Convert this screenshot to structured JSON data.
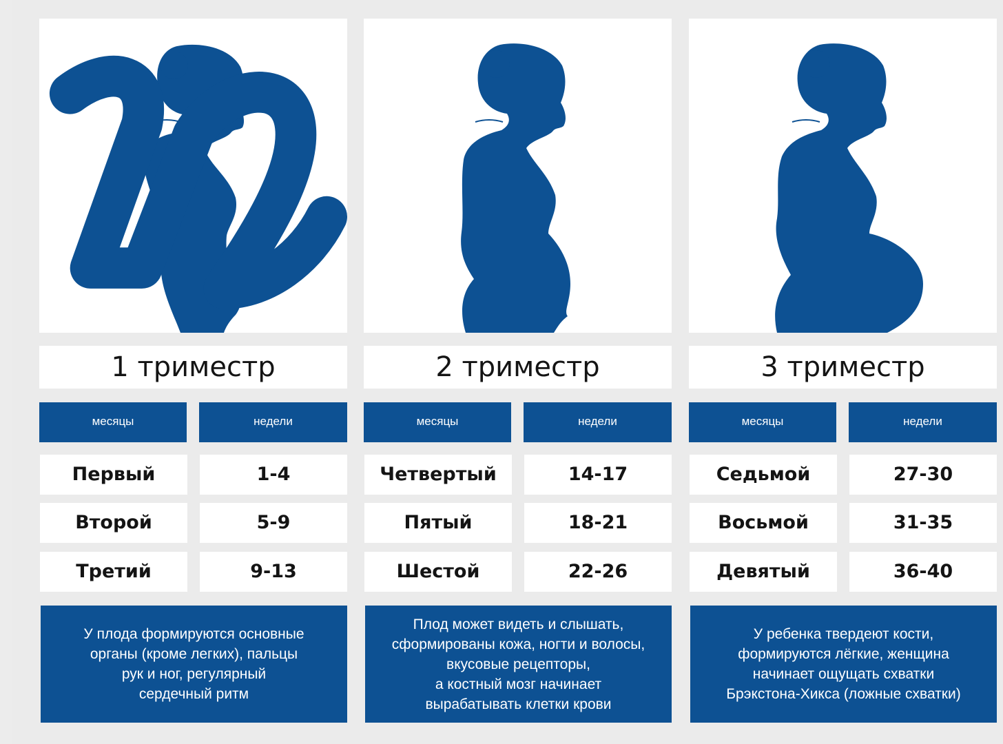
{
  "brand": {
    "logo_text": "n",
    "color": "#0d5193"
  },
  "colors": {
    "accent": "#0d5193",
    "cell_bg": "#ffffff",
    "page_bg": "#ebebeb"
  },
  "trimesters": [
    {
      "title": "1 триместр",
      "months_header": "месяцы",
      "weeks_header": "недели",
      "rows": [
        {
          "month": "Первый",
          "weeks": "1-4"
        },
        {
          "month": "Второй",
          "weeks": "5-9"
        },
        {
          "month": "Третий",
          "weeks": "9-13"
        }
      ],
      "description_lines": [
        "У плода формируются основные",
        "органы (кроме легких), пальцы",
        "рук и ног, регулярный",
        "сердечный ритм"
      ]
    },
    {
      "title": "2 триместр",
      "months_header": "месяцы",
      "weeks_header": "недели",
      "rows": [
        {
          "month": "Четвертый",
          "weeks": "14-17"
        },
        {
          "month": "Пятый",
          "weeks": "18-21"
        },
        {
          "month": "Шестой",
          "weeks": "22-26"
        }
      ],
      "description_lines": [
        "Плод может видеть и слышать,",
        "сформированы кожа, ногти и волосы,",
        "вкусовые рецепторы,",
        "а костный мозг начинает",
        "вырабатывать клетки крови"
      ]
    },
    {
      "title": "3 триместр",
      "months_header": "месяцы",
      "weeks_header": "недели",
      "rows": [
        {
          "month": "Седьмой",
          "weeks": "27-30"
        },
        {
          "month": "Восьмой",
          "weeks": "31-35"
        },
        {
          "month": "Девятый",
          "weeks": "36-40"
        }
      ],
      "description_lines": [
        "У ребенка твердеют кости,",
        "формируются лёгкие, женщина",
        "начинает ощущать схватки",
        "Брэкстона-Хикса (ложные  схватки)"
      ]
    }
  ]
}
